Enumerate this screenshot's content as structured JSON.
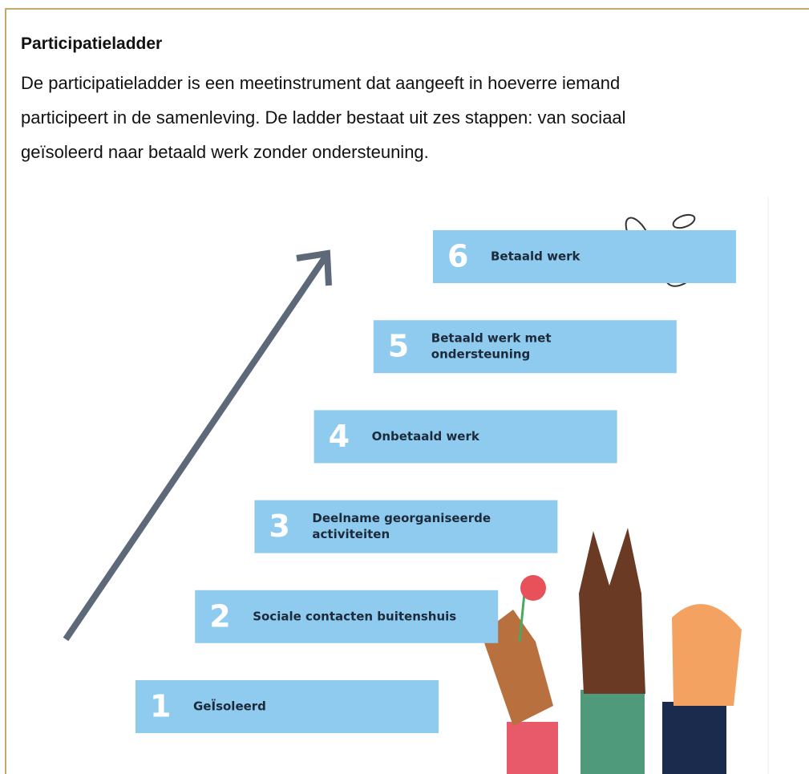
{
  "header": {
    "title": "Participatieladder"
  },
  "body": {
    "lines": [
      "De participatieladder is een meetinstrument dat aangeeft in hoeverre iemand",
      "participeert in de samenleving. De ladder bestaat uit zes stappen: van sociaal",
      "geïsoleerd naar betaald werk zonder ondersteuning."
    ]
  },
  "steps": [
    {
      "number": "1",
      "label": [
        "GeÏsoleerd"
      ]
    },
    {
      "number": "2",
      "label": [
        "Sociale contacten buitenshuis"
      ]
    },
    {
      "number": "3",
      "label": [
        "Deelname georganiseerde",
        "activiteiten"
      ]
    },
    {
      "number": "4",
      "label": [
        "Onbetaald werk"
      ]
    },
    {
      "number": "5",
      "label": [
        "Betaald werk met",
        "ondersteuning"
      ]
    },
    {
      "number": "6",
      "label": [
        "Betaald werk"
      ]
    }
  ]
}
